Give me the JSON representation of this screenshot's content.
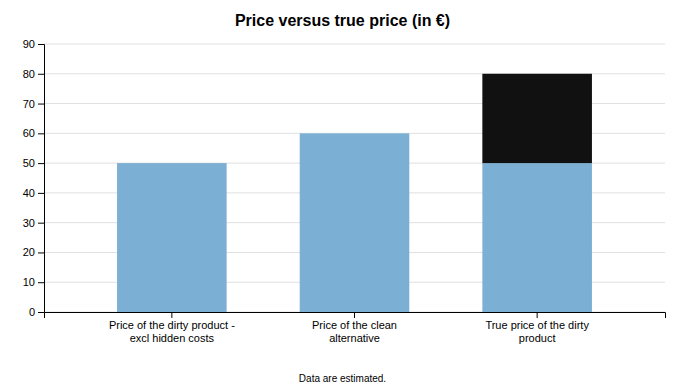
{
  "chart_data": {
    "type": "bar",
    "stacked": true,
    "title": "Price versus true price (in €)",
    "categories": [
      "Price of the dirty product -\nexcl hidden costs",
      "Price of the clean\nalternative",
      "True price of the dirty\nproduct"
    ],
    "series": [
      {
        "color": "#7BAFD4",
        "values": [
          50,
          60,
          50
        ]
      },
      {
        "color": "#111111",
        "values": [
          0,
          0,
          30
        ]
      }
    ],
    "ylim": [
      0,
      90
    ],
    "yticks": [
      0,
      10,
      20,
      30,
      40,
      50,
      60,
      70,
      80,
      90
    ],
    "grid": true,
    "footnote": "Data are estimated."
  }
}
